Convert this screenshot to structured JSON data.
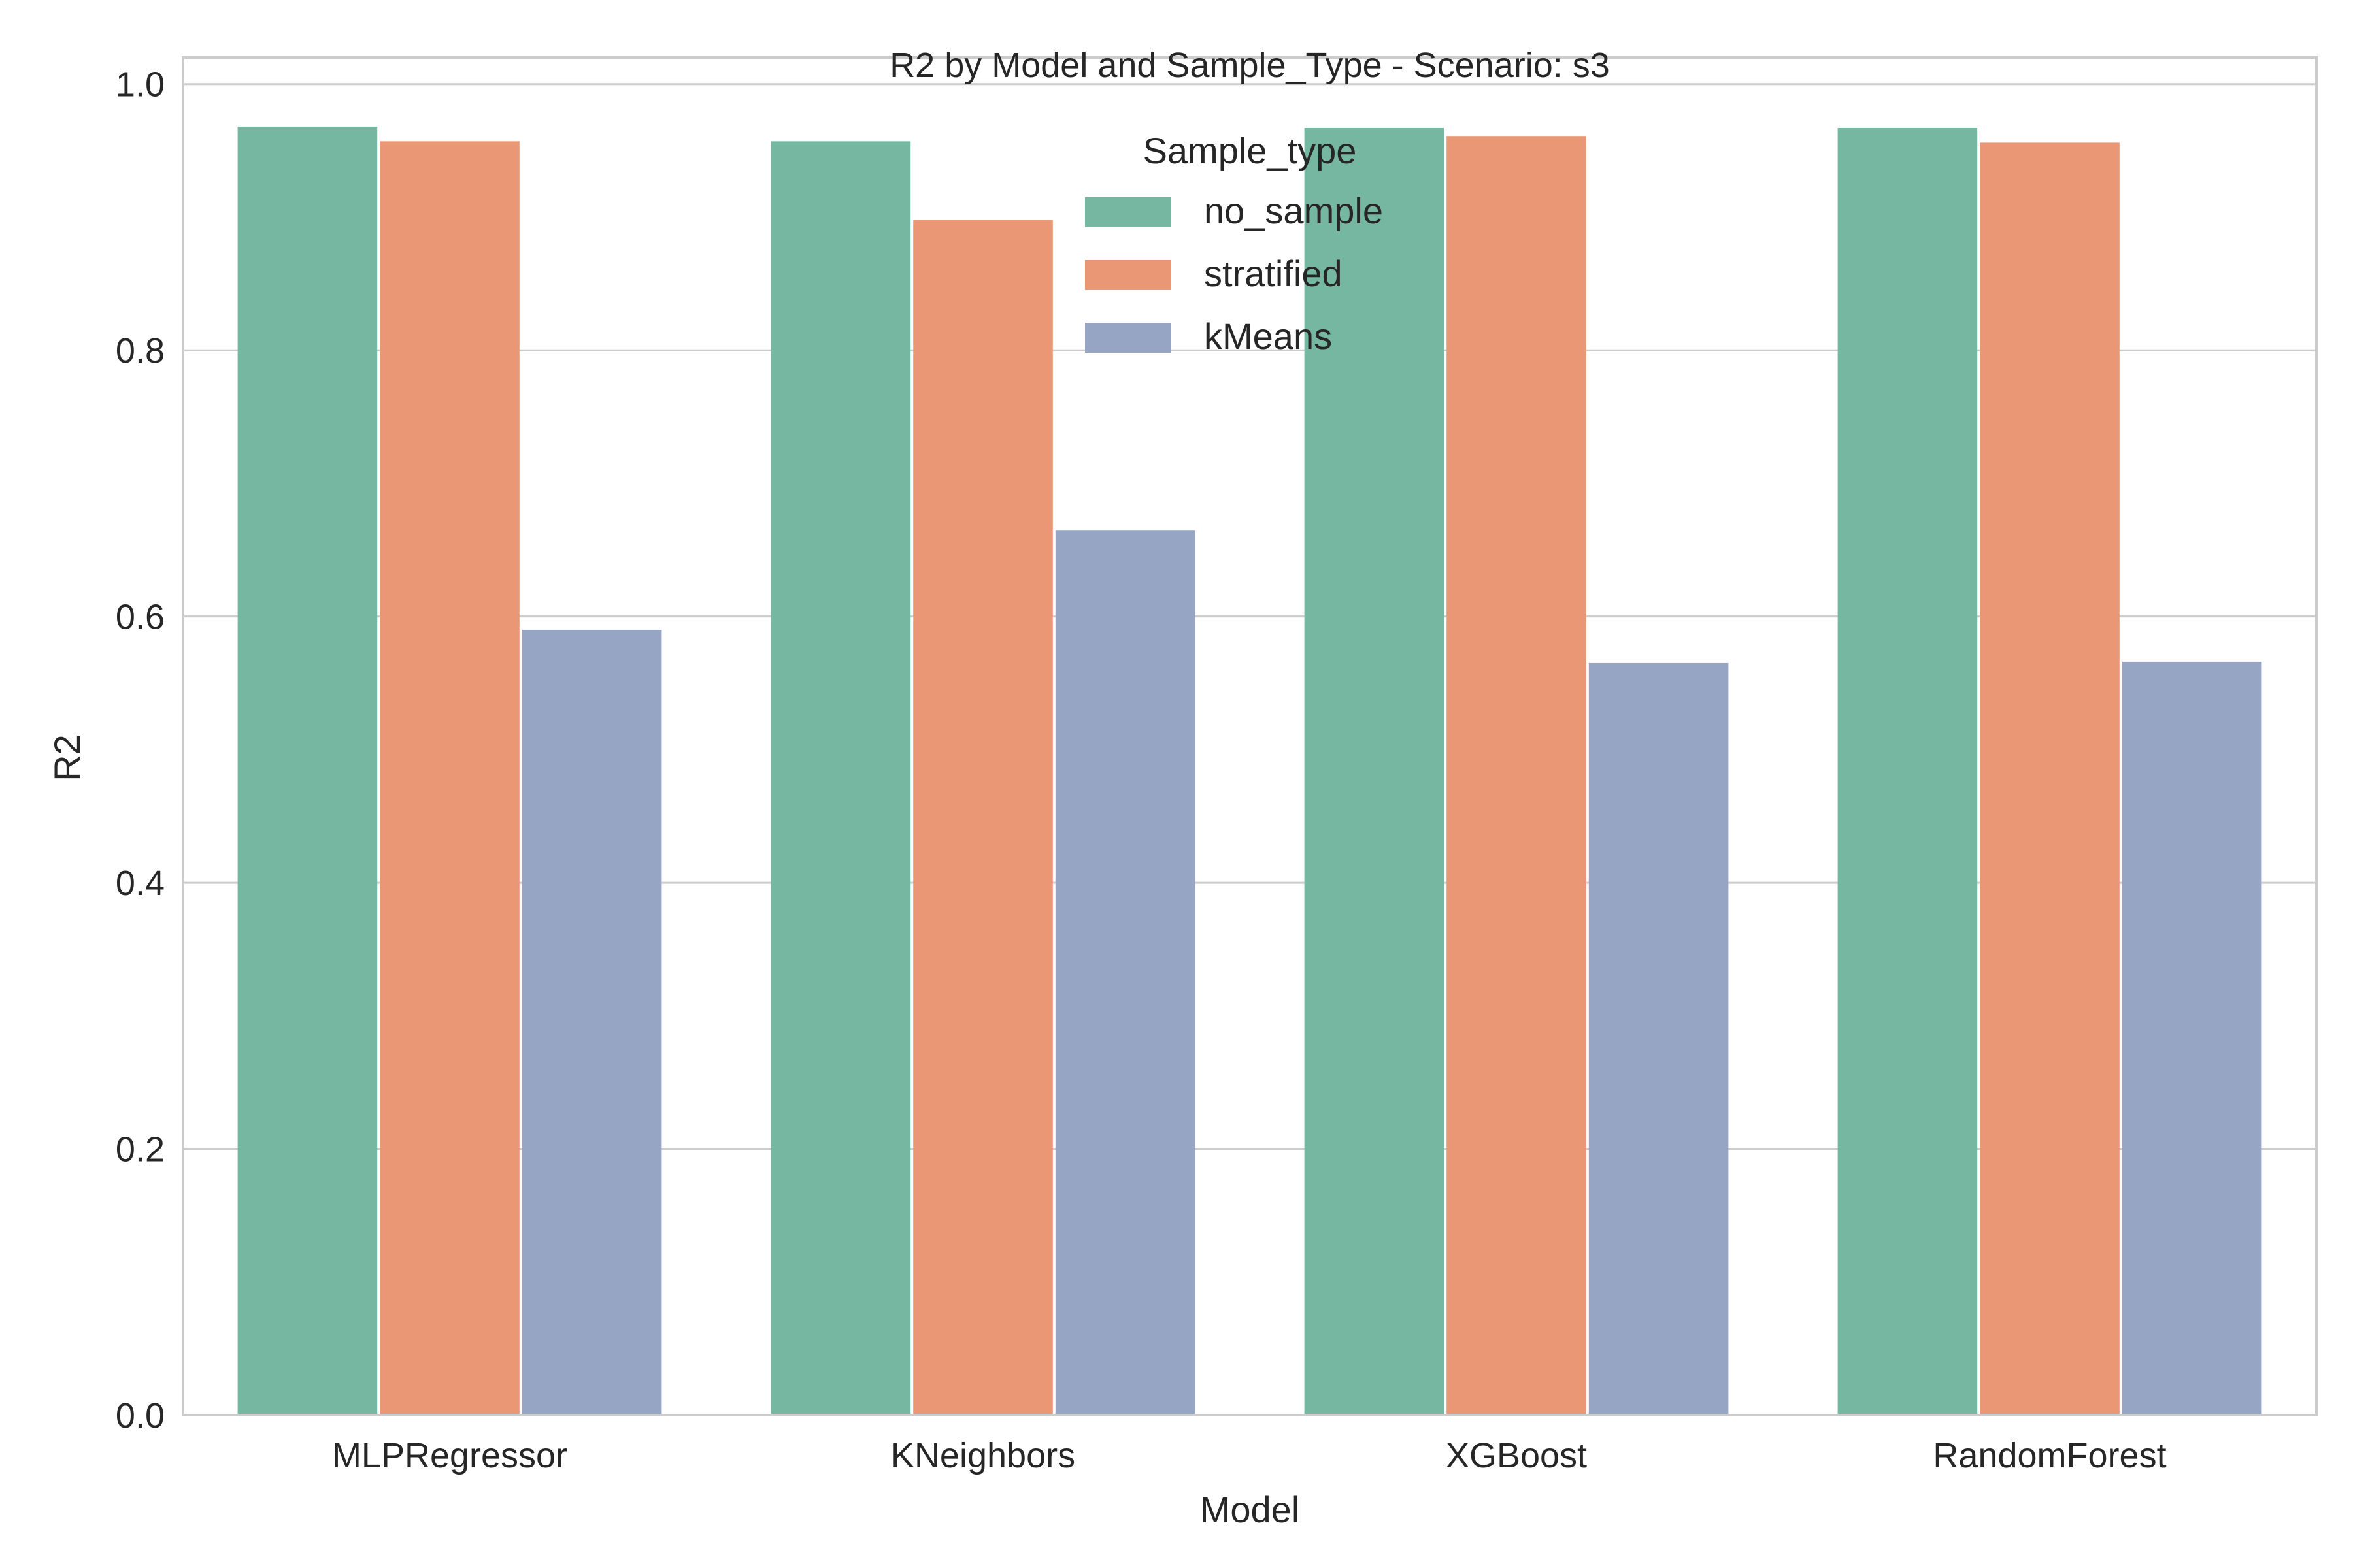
{
  "chart_data": {
    "type": "bar",
    "title": "R2 by Model and Sample_Type - Scenario: s3",
    "xlabel": "Model",
    "ylabel": "R2",
    "ylim": [
      0,
      1.02
    ],
    "yticks": [
      0.0,
      0.2,
      0.4,
      0.6,
      0.8,
      1.0
    ],
    "ytick_labels": [
      "0.0",
      "0.2",
      "0.4",
      "0.6",
      "0.8",
      "1.0"
    ],
    "categories": [
      "MLPRegressor",
      "KNeighbors",
      "XGBoost",
      "RandomForest"
    ],
    "grid": "horizontal",
    "legend": {
      "title": "Sample_type",
      "placement": "top-center"
    },
    "series": [
      {
        "name": "no_sample",
        "color": "#76b7a2",
        "values": [
          0.968,
          0.957,
          0.967,
          0.967
        ]
      },
      {
        "name": "stratified",
        "color": "#ea9776",
        "values": [
          0.957,
          0.898,
          0.961,
          0.956
        ]
      },
      {
        "name": "kMeans",
        "color": "#96a5c4",
        "values": [
          0.59,
          0.665,
          0.565,
          0.566
        ]
      }
    ]
  }
}
